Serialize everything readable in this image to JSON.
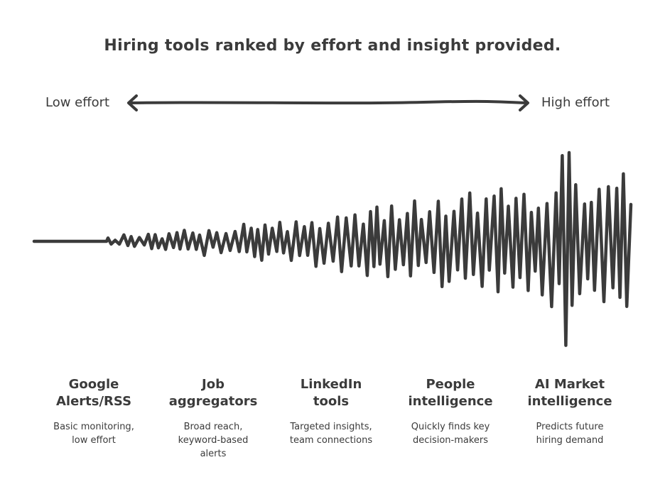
{
  "title": "Hiring tools ranked by effort and insight provided.",
  "scale": {
    "low_label": "Low effort",
    "high_label": "High effort"
  },
  "stages": [
    {
      "title": "Google\nAlerts/RSS",
      "description": "Basic monitoring,\nlow effort"
    },
    {
      "title": "Job\naggregators",
      "description": "Broad reach,\nkeyword-based\nalerts"
    },
    {
      "title": "LinkedIn\ntools",
      "description": "Targeted insights,\nteam connections"
    },
    {
      "title": "People\nintelligence",
      "description": "Quickly finds key\ndecision-makers"
    },
    {
      "title": "AI Market\nintelligence",
      "description": "Predicts future\nhiring demand"
    }
  ],
  "colors": {
    "ink": "#3b3b3b",
    "background": "#ffffff"
  }
}
